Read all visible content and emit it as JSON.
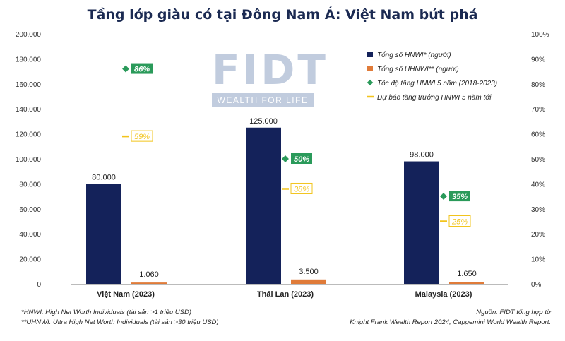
{
  "title": "Tầng lớp giàu có tại Đông Nam Á: Việt Nam bứt phá",
  "watermark": {
    "logo": "FIDT",
    "tagline": "WEALTH FOR LIFE"
  },
  "footnotes": {
    "left": [
      "*HNWI: High Net Worth Individuals (tài sản >1 triệu USD)",
      "**UHNWI: Ultra High Net Worth Individuals (tài sản >30 triệu USD)"
    ],
    "right": [
      "Nguồn: FIDT tổng hợp từ",
      "Knight Frank Wealth Report 2024, Capgemini World Wealth Report."
    ]
  },
  "colors": {
    "hnwi": "#14225a",
    "uhnwi": "#e07b39",
    "growth": "#2a9a5a",
    "forecast": "#f2c41d",
    "forecast_text": "#8a6d00"
  },
  "chart_data": {
    "type": "bar",
    "categories": [
      "Việt Nam (2023)",
      "Thái Lan (2023)",
      "Malaysia (2023)"
    ],
    "series": [
      {
        "name": "Tổng số HNWI* (người)",
        "axis": "left",
        "kind": "bar",
        "values": [
          80000,
          125000,
          98000
        ],
        "labels": [
          "80.000",
          "125.000",
          "98.000"
        ]
      },
      {
        "name": "Tổng số UHNWI** (người)",
        "axis": "left",
        "kind": "bar",
        "values": [
          1060,
          3500,
          1650
        ],
        "labels": [
          "1.060",
          "3.500",
          "1.650"
        ]
      },
      {
        "name": "Tốc độ tăng HNWI 5 năm (2018-2023)",
        "axis": "right",
        "kind": "marker-diamond",
        "values": [
          86,
          50,
          35
        ],
        "labels": [
          "86%",
          "50%",
          "35%"
        ]
      },
      {
        "name": "Dự báo tăng trưởng HNWI 5 năm tới",
        "axis": "right",
        "kind": "marker-dash",
        "values": [
          59,
          38,
          25
        ],
        "labels": [
          "59%",
          "38%",
          "25%"
        ]
      }
    ],
    "y_left": {
      "min": 0,
      "max": 200000,
      "step": 20000,
      "ticks": [
        "0",
        "20.000",
        "40.000",
        "60.000",
        "80.000",
        "100.000",
        "120.000",
        "140.000",
        "160.000",
        "180.000",
        "200.000"
      ]
    },
    "y_right": {
      "min": 0,
      "max": 100,
      "step": 10,
      "ticks": [
        "0%",
        "10%",
        "20%",
        "30%",
        "40%",
        "50%",
        "60%",
        "70%",
        "80%",
        "90%",
        "100%"
      ]
    },
    "grid": false,
    "legend_position": "top-right"
  }
}
